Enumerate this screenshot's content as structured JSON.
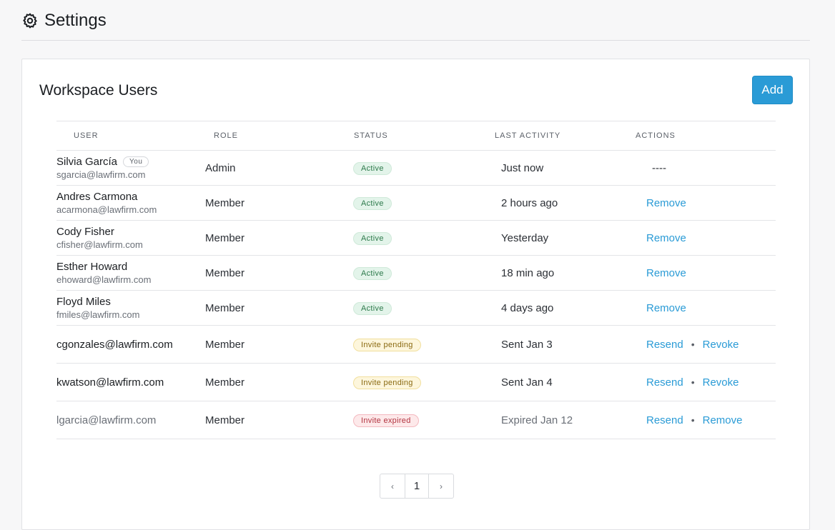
{
  "page": {
    "title": "Settings",
    "icon": "gear-icon"
  },
  "card": {
    "title": "Workspace Users",
    "add_label": "Add"
  },
  "table": {
    "headers": {
      "user": "USER",
      "role": "ROLE",
      "status": "STATUS",
      "last_activity": "LAST ACTIVITY",
      "actions": "ACTIONS"
    },
    "members": [
      {
        "name": "Silvia García",
        "you": "You",
        "email": "sgarcia@lawfirm.com",
        "role": "Admin",
        "status": "Active",
        "activity": "Just now",
        "action": "----"
      },
      {
        "name": "Andres Carmona",
        "email": "acarmona@lawfirm.com",
        "role": "Member",
        "status": "Active",
        "activity": "2 hours ago",
        "action": "Remove"
      },
      {
        "name": "Cody Fisher",
        "email": "cfisher@lawfirm.com",
        "role": "Member",
        "status": "Active",
        "activity": "Yesterday",
        "action": "Remove"
      },
      {
        "name": "Esther Howard",
        "email": "ehoward@lawfirm.com",
        "role": "Member",
        "status": "Active",
        "activity": "18 min ago",
        "action": "Remove"
      },
      {
        "name": "Floyd Miles",
        "email": "fmiles@lawfirm.com",
        "role": "Member",
        "status": "Active",
        "activity": "4 days ago",
        "action": "Remove"
      }
    ],
    "invites": [
      {
        "email": "cgonzales@lawfirm.com",
        "role": "Member",
        "status": "Invite pending",
        "activity": "Sent Jan 3",
        "action1": "Resend",
        "sep": "•",
        "action2": "Revoke"
      },
      {
        "email": "kwatson@lawfirm.com",
        "role": "Member",
        "status": "Invite pending",
        "activity": "Sent Jan 4",
        "action1": "Resend",
        "sep": "•",
        "action2": "Revoke"
      },
      {
        "email": "lgarcia@lawfirm.com",
        "role": "Member",
        "status": "Invite expired",
        "activity": "Expired Jan 12",
        "action1": "Resend",
        "sep": "•",
        "action2": "Remove"
      }
    ]
  },
  "pagination": {
    "prev": "‹",
    "page": "1",
    "next": "›"
  },
  "colors": {
    "accent": "#2a9bd6",
    "active": "#2d7a4b",
    "pending": "#8a6a12",
    "expired": "#b23440"
  }
}
